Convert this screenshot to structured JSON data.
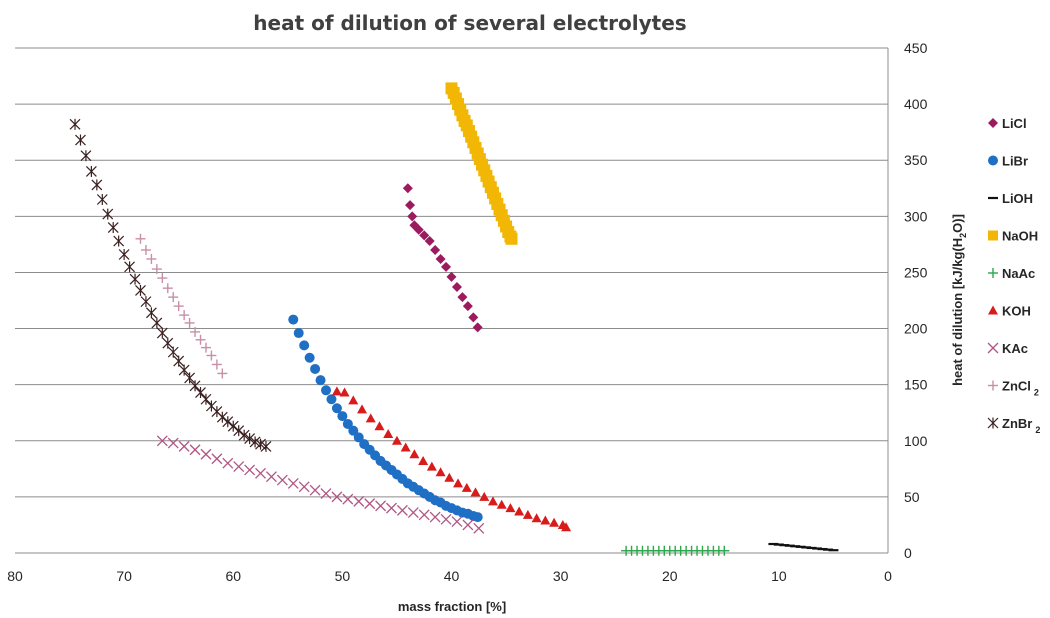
{
  "chart_data": {
    "type": "scatter",
    "title": "heat of dilution of several electrolytes",
    "xlabel": "mass fraction [%]",
    "ylabel_parts": [
      "heat of dilution [kJ/kg(H",
      "2",
      "O)]"
    ],
    "xlim": [
      80,
      0
    ],
    "x_reversed": true,
    "ylim": [
      0,
      450
    ],
    "x_ticks": [
      80,
      70,
      60,
      50,
      40,
      30,
      20,
      10,
      0
    ],
    "y_ticks": [
      0,
      50,
      100,
      150,
      200,
      250,
      300,
      350,
      400,
      450
    ],
    "grid": "horizontal",
    "y_axis_side": "right",
    "legend_position": "right",
    "series": [
      {
        "name": "LiCl",
        "label": "LiCl",
        "marker": "diamond",
        "color": "#9B1B5E",
        "x": [
          44.0,
          43.8,
          43.6,
          43.4,
          43.0,
          42.5,
          42.0,
          41.5,
          41.0,
          40.5,
          40.0,
          39.5,
          39.0,
          38.5,
          38.0,
          37.6
        ],
        "y": [
          325,
          310,
          300,
          292,
          288,
          283,
          278,
          270,
          262,
          255,
          246,
          237,
          228,
          220,
          210,
          201
        ]
      },
      {
        "name": "LiBr",
        "label": "LiBr",
        "marker": "circle",
        "color": "#1F6FC5",
        "x": [
          54.5,
          54.0,
          53.5,
          53.0,
          52.5,
          52.0,
          51.5,
          51.0,
          50.5,
          50.0,
          49.5,
          49.0,
          48.5,
          48.0,
          47.5,
          47.0,
          46.5,
          46.0,
          45.5,
          45.0,
          44.5,
          44.0,
          43.5,
          43.0,
          42.5,
          42.0,
          41.5,
          41.0,
          40.5,
          40.0,
          39.5,
          39.0,
          38.5,
          38.0,
          37.6
        ],
        "y": [
          208,
          196,
          185,
          174,
          164,
          154,
          145,
          137,
          129,
          122,
          115,
          109,
          103,
          97,
          92,
          87,
          82,
          78,
          74,
          70,
          66,
          62,
          59,
          56,
          53,
          50,
          47,
          45,
          42,
          40,
          38,
          36,
          35,
          33,
          32
        ]
      },
      {
        "name": "LiOH",
        "label": "LiOH",
        "marker": "dash",
        "color": "#111111",
        "x": [
          10.5,
          10.0,
          9.5,
          9.0,
          8.5,
          8.0,
          7.5,
          7.0,
          6.5,
          6.0,
          5.5,
          5.0
        ],
        "y": [
          8,
          7.5,
          7,
          6.5,
          6,
          5.5,
          5,
          4.5,
          4,
          3.5,
          3,
          2.5
        ]
      },
      {
        "name": "NaOH",
        "label": "NaOH",
        "marker": "square",
        "color": "#F2B705",
        "x": [
          40.0,
          39.8,
          39.6,
          39.4,
          39.2,
          39.0,
          38.8,
          38.6,
          38.4,
          38.2,
          38.0,
          37.8,
          37.6,
          37.4,
          37.2,
          37.0,
          36.8,
          36.6,
          36.4,
          36.2,
          36.0,
          35.8,
          35.6,
          35.4,
          35.2,
          35.0,
          34.8,
          34.6,
          34.5
        ],
        "y": [
          414,
          410,
          405,
          400,
          395,
          390,
          385,
          381,
          376,
          371,
          366,
          361,
          356,
          351,
          346,
          341,
          336,
          331,
          326,
          321,
          316,
          311,
          306,
          301,
          296,
          291,
          286,
          282,
          280
        ]
      },
      {
        "name": "NaAc",
        "label": "NaAc",
        "marker": "plus",
        "color": "#2AA84A",
        "x": [
          24.0,
          23.5,
          23.0,
          22.5,
          22.0,
          21.5,
          21.0,
          20.5,
          20.0,
          19.5,
          19.0,
          18.5,
          18.0,
          17.5,
          17.0,
          16.5,
          16.0,
          15.5,
          15.0
        ],
        "y": [
          2,
          2,
          2,
          2,
          2,
          2,
          2,
          2,
          2,
          2,
          2,
          2,
          2,
          2,
          2,
          2,
          2,
          2,
          2
        ]
      },
      {
        "name": "KOH",
        "label": "KOH",
        "marker": "triangle",
        "color": "#D81B1B",
        "x": [
          50.5,
          49.8,
          49.0,
          48.2,
          47.4,
          46.6,
          45.8,
          45.0,
          44.2,
          43.4,
          42.6,
          41.8,
          41.0,
          40.2,
          39.4,
          38.6,
          37.8,
          37.0,
          36.2,
          35.4,
          34.6,
          33.8,
          33.0,
          32.2,
          31.4,
          30.6,
          29.8,
          29.5
        ],
        "y": [
          144,
          143,
          136,
          128,
          120,
          113,
          106,
          100,
          94,
          88,
          82,
          77,
          72,
          67,
          62,
          58,
          54,
          50,
          46,
          43,
          40,
          37,
          34,
          31,
          29,
          27,
          25,
          23
        ]
      },
      {
        "name": "KAc",
        "label": "KAc",
        "marker": "x",
        "color": "#B05585",
        "x": [
          66.5,
          65.5,
          64.5,
          63.5,
          62.5,
          61.5,
          60.5,
          59.5,
          58.5,
          57.5,
          56.5,
          55.5,
          54.5,
          53.5,
          52.5,
          51.5,
          50.5,
          49.5,
          48.5,
          47.5,
          46.5,
          45.5,
          44.5,
          43.5,
          42.5,
          41.5,
          40.5,
          39.5,
          38.5,
          37.5
        ],
        "y": [
          100,
          98,
          95,
          92,
          88,
          84,
          80,
          77,
          74,
          71,
          68,
          65,
          62,
          59,
          56,
          53,
          50,
          48,
          46,
          44,
          42,
          40,
          38,
          36,
          34,
          32,
          30,
          28,
          25,
          22
        ]
      },
      {
        "name": "ZnCl2",
        "label": "ZnCl",
        "label_sub": "2",
        "marker": "plus",
        "color": "#C98FA8",
        "x": [
          68.5,
          68.0,
          67.5,
          67.0,
          66.5,
          66.0,
          65.5,
          65.0,
          64.5,
          64.0,
          63.5,
          63.0,
          62.5,
          62.0,
          61.5,
          61.0
        ],
        "y": [
          280,
          270,
          262,
          253,
          245,
          236,
          228,
          220,
          212,
          205,
          197,
          190,
          183,
          176,
          168,
          160
        ]
      },
      {
        "name": "ZnBr2",
        "label": "ZnBr",
        "label_sub": "2",
        "marker": "asterisk",
        "color": "#3A2020",
        "x": [
          74.5,
          74.0,
          73.5,
          73.0,
          72.5,
          72.0,
          71.5,
          71.0,
          70.5,
          70.0,
          69.5,
          69.0,
          68.5,
          68.0,
          67.5,
          67.0,
          66.5,
          66.0,
          65.5,
          65.0,
          64.5,
          64.0,
          63.5,
          63.0,
          62.5,
          62.0,
          61.5,
          61.0,
          60.5,
          60.0,
          59.5,
          59.0,
          58.5,
          58.0,
          57.5,
          57.0
        ],
        "y": [
          382,
          368,
          354,
          340,
          328,
          315,
          302,
          290,
          278,
          266,
          255,
          244,
          234,
          224,
          214,
          205,
          196,
          187,
          179,
          171,
          163,
          156,
          149,
          143,
          137,
          131,
          126,
          121,
          117,
          113,
          109,
          105,
          102,
          99,
          97,
          95
        ]
      }
    ]
  }
}
